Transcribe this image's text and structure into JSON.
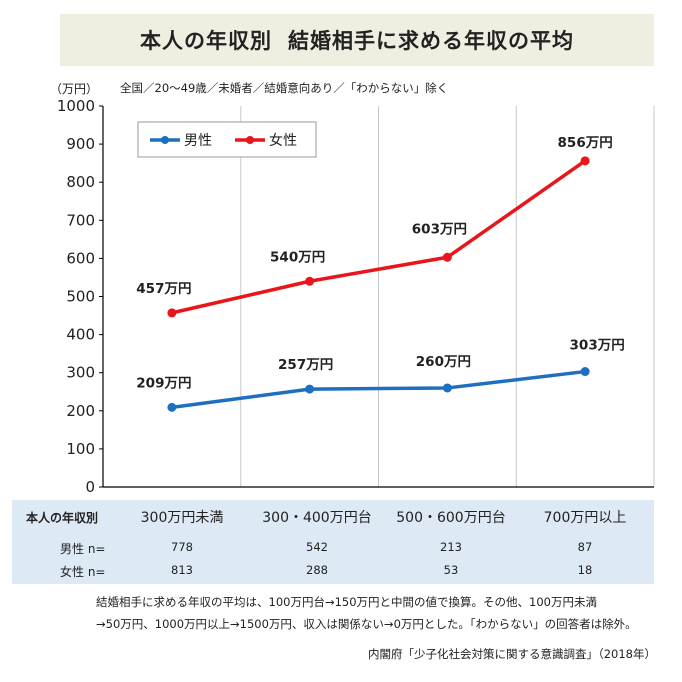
{
  "title_parts": [
    "本人の年収別",
    "結婚相手に求める年収の平均"
  ],
  "unit_label": "（万円）",
  "subtitle": "全国／20～49歳／未婚者／結婚意向あり／「わからない」除く",
  "chart_data": {
    "type": "line",
    "categories": [
      "300万円未満",
      "300・400万円台",
      "500・600万円台",
      "700万円以上"
    ],
    "series": [
      {
        "name": "男性",
        "color": "#1f6fc0",
        "values": [
          209,
          257,
          260,
          303
        ],
        "labels": [
          "209万円",
          "257万円",
          "260万円",
          "303万円"
        ]
      },
      {
        "name": "女性",
        "color": "#e8161b",
        "values": [
          457,
          540,
          603,
          856
        ],
        "labels": [
          "457万円",
          "540万円",
          "603万円",
          "856万円"
        ]
      }
    ],
    "ylim": [
      0,
      1000
    ],
    "yticks": [
      0,
      100,
      200,
      300,
      400,
      500,
      600,
      700,
      800,
      900,
      1000
    ],
    "grid": "vertical",
    "legend": "top-left"
  },
  "table": {
    "row_header": "本人の年収別",
    "rows": [
      {
        "label": "男性 n=",
        "values": [
          "778",
          "542",
          "213",
          "87"
        ]
      },
      {
        "label": "女性 n=",
        "values": [
          "813",
          "288",
          "53",
          "18"
        ]
      }
    ]
  },
  "notes": [
    "結婚相手に求める年収の平均は、100万円台→150万円と中間の値で換算。その他、100万円未満",
    "→50万円、1000万円以上→1500万円、収入は関係ない→0万円とした。「わからない」の回答者は除外。"
  ],
  "source": "内閣府「少子化社会対策に関する意識調査」（2018年）"
}
